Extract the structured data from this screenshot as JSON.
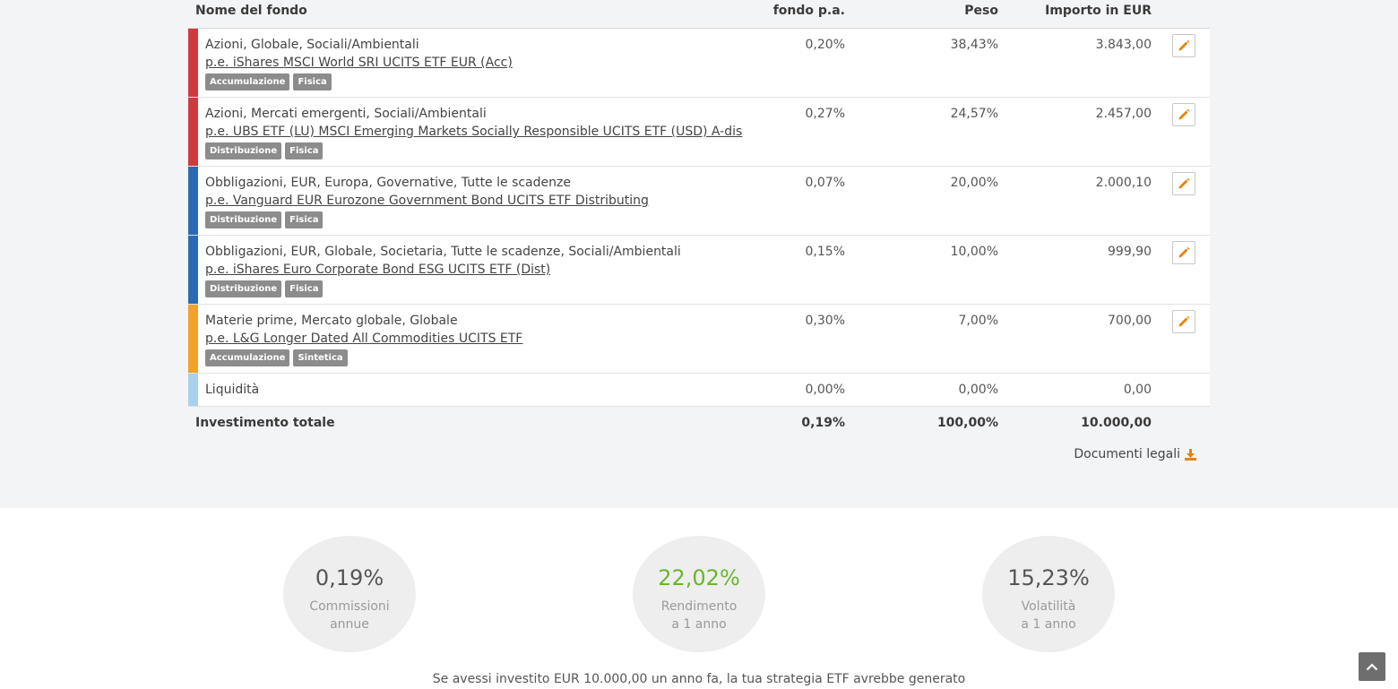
{
  "header": {
    "fund_name": "Nome del fondo",
    "fee": "fondo p.a.",
    "weight": "Peso",
    "amount": "Importo in EUR"
  },
  "rows": [
    {
      "color": "#d2393f",
      "category": "Azioni, Globale, Sociali/Ambientali",
      "fund": "p.e. iShares MSCI World SRI UCITS ETF EUR (Acc)",
      "tags": [
        "Accumulazione",
        "Fisica"
      ],
      "fee": "0,20%",
      "weight": "38,43%",
      "amount": "3.843,00"
    },
    {
      "color": "#d2393f",
      "category": "Azioni, Mercati emergenti, Sociali/Ambientali",
      "fund": "p.e. UBS ETF (LU) MSCI Emerging Markets Socially Responsible UCITS ETF (USD) A-dis",
      "tags": [
        "Distribuzione",
        "Fisica"
      ],
      "fee": "0,27%",
      "weight": "24,57%",
      "amount": "2.457,00"
    },
    {
      "color": "#2a6ab3",
      "category": "Obbligazioni, EUR, Europa, Governative, Tutte le scadenze",
      "fund": "p.e. Vanguard EUR Eurozone Government Bond UCITS ETF Distributing",
      "tags": [
        "Distribuzione",
        "Fisica"
      ],
      "fee": "0,07%",
      "weight": "20,00%",
      "amount": "2.000,10"
    },
    {
      "color": "#2a6ab3",
      "category": "Obbligazioni, EUR, Globale, Societaria, Tutte le scadenze, Sociali/Ambientali",
      "fund": "p.e. iShares Euro Corporate Bond ESG UCITS ETF (Dist)",
      "tags": [
        "Distribuzione",
        "Fisica"
      ],
      "fee": "0,15%",
      "weight": "10,00%",
      "amount": "999,90"
    },
    {
      "color": "#f5a02a",
      "category": "Materie prime, Mercato globale, Globale",
      "fund": "p.e. L&G Longer Dated All Commodities UCITS ETF",
      "tags": [
        "Accumulazione",
        "Sintetica"
      ],
      "fee": "0,30%",
      "weight": "7,00%",
      "amount": "700,00"
    }
  ],
  "cash": {
    "color": "#a8d1ee",
    "label": "Liquidità",
    "fee": "0,00%",
    "weight": "0,00%",
    "amount": "0,00"
  },
  "total": {
    "label": "Investimento totale",
    "fee": "0,19%",
    "weight": "100,00%",
    "amount": "10.000,00"
  },
  "legal_docs": "Documenti legali",
  "icons": {
    "edit": "pencil-icon",
    "download": "download-icon",
    "scroll_top": "chevron-up-icon"
  },
  "accent": "#e8830c",
  "stats": [
    {
      "value": "0,19%",
      "line1": "Commissioni",
      "line2": "annue"
    },
    {
      "value": "22,02%",
      "line1": "Rendimento",
      "line2": "a 1 anno",
      "highlight": "#6bb52b"
    },
    {
      "value": "15,23%",
      "line1": "Volatilità",
      "line2": "a 1 anno"
    }
  ],
  "footer_text": "Se avessi investito EUR 10.000,00 un anno fa, la tua strategia ETF avrebbe generato"
}
